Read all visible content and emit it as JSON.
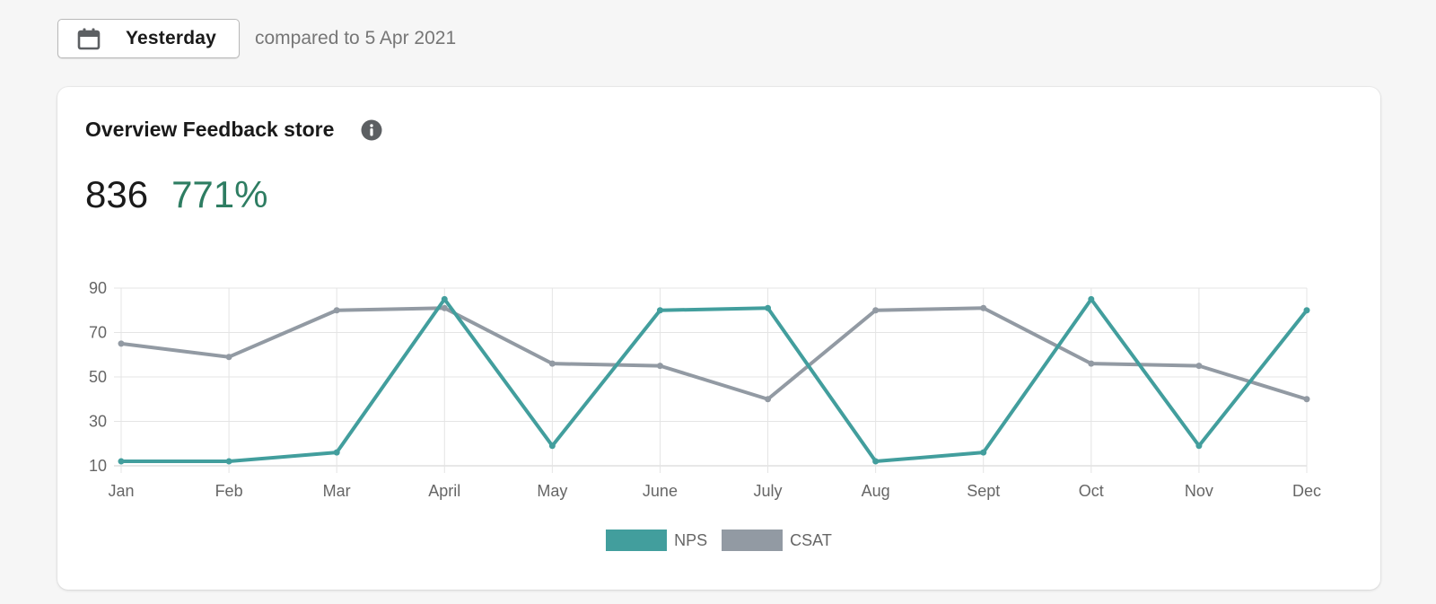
{
  "filter": {
    "date_label": "Yesterday",
    "compare_text": "compared to 5 Apr 2021",
    "icon": "calendar-icon"
  },
  "card": {
    "title": "Overview Feedback store",
    "info_icon": "info-icon",
    "metric_value": "836",
    "metric_change": "771%",
    "positive_color": "#2e7d62"
  },
  "chart_data": {
    "type": "line",
    "categories": [
      "Jan",
      "Feb",
      "Mar",
      "April",
      "May",
      "June",
      "July",
      "Aug",
      "Sept",
      "Oct",
      "Nov",
      "Dec"
    ],
    "series": [
      {
        "name": "NPS",
        "color": "#429e9d",
        "values": [
          12,
          12,
          16,
          85,
          19,
          80,
          81,
          12,
          16,
          85,
          19,
          80
        ]
      },
      {
        "name": "CSAT",
        "color": "#929aa3",
        "values": [
          65,
          59,
          80,
          81,
          56,
          55,
          40,
          80,
          81,
          56,
          55,
          40
        ]
      }
    ],
    "ylim": [
      10,
      90
    ],
    "yticks": [
      10,
      30,
      50,
      70,
      90
    ],
    "grid": true,
    "legend_position": "bottom"
  }
}
